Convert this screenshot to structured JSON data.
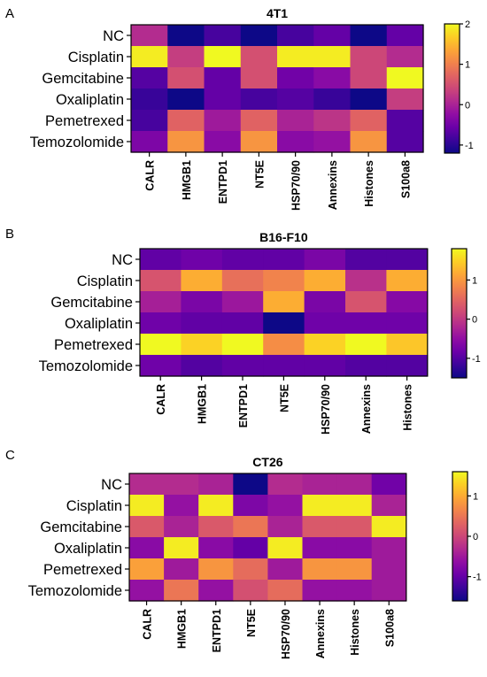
{
  "colorscale": {
    "name": "plasma",
    "stops": [
      "#0d0887",
      "#3b049a",
      "#6a00a8",
      "#900da4",
      "#b12a90",
      "#cc4778",
      "#e16462",
      "#f2844b",
      "#fca636",
      "#fcce25",
      "#f0f921"
    ]
  },
  "chart_data": [
    {
      "type": "heatmap",
      "panel_label": "A",
      "title": "4T1",
      "rows": [
        "NC",
        "Cisplatin",
        "Gemcitabine",
        "Oxaliplatin",
        "Pemetrexed",
        "Temozolomide"
      ],
      "columns": [
        "CALR",
        "HMGB1",
        "ENTPD1",
        "NT5E",
        "HSP70/90",
        "Annexins",
        "Histones",
        "S100a8"
      ],
      "values": [
        [
          0.1,
          -1.2,
          -0.8,
          -1.2,
          -0.8,
          -0.6,
          -1.2,
          -0.6
        ],
        [
          1.9,
          0.3,
          2.0,
          0.5,
          1.9,
          1.9,
          0.4,
          0.1
        ],
        [
          -0.7,
          0.5,
          -0.6,
          0.5,
          -0.5,
          -0.3,
          0.4,
          2.0
        ],
        [
          -0.9,
          -1.2,
          -0.6,
          -0.8,
          -0.7,
          -0.9,
          -1.2,
          0.3
        ],
        [
          -0.8,
          0.7,
          -0.1,
          0.7,
          0.0,
          0.2,
          0.7,
          -0.7
        ],
        [
          -0.4,
          1.2,
          -0.3,
          1.2,
          -0.3,
          -0.2,
          1.2,
          -0.7
        ]
      ],
      "colorbar": {
        "min": -1.2,
        "max": 2.0,
        "ticks": [
          -1,
          0,
          1,
          2
        ]
      }
    },
    {
      "type": "heatmap",
      "panel_label": "B",
      "title": "B16-F10",
      "rows": [
        "NC",
        "Cisplatin",
        "Gemcitabine",
        "Oxaliplatin",
        "Pemetrexed",
        "Temozolomide"
      ],
      "columns": [
        "CALR",
        "HMGB1",
        "ENTPD1",
        "NT5E",
        "HSP70/90",
        "Annexins",
        "Histones"
      ],
      "values": [
        [
          -0.9,
          -0.8,
          -0.9,
          -0.9,
          -0.7,
          -1.0,
          -1.0
        ],
        [
          0.3,
          1.2,
          0.6,
          0.8,
          1.2,
          -0.1,
          1.2
        ],
        [
          -0.3,
          -0.7,
          -0.4,
          1.2,
          -0.7,
          0.3,
          -0.6
        ],
        [
          -0.8,
          -0.9,
          -0.9,
          -1.5,
          -0.8,
          -0.8,
          -0.8
        ],
        [
          1.8,
          1.5,
          1.8,
          0.9,
          1.5,
          1.8,
          1.4
        ],
        [
          -0.8,
          -1.0,
          -0.9,
          -0.9,
          -0.9,
          -1.0,
          -1.0
        ]
      ],
      "colorbar": {
        "min": -1.5,
        "max": 1.8,
        "ticks": [
          -1,
          0,
          1
        ]
      }
    },
    {
      "type": "heatmap",
      "panel_label": "C",
      "title": "CT26",
      "rows": [
        "NC",
        "Cisplatin",
        "Gemcitabine",
        "Oxaliplatin",
        "Pemetrexed",
        "Temozolomide"
      ],
      "columns": [
        "CALR",
        "HMGB1",
        "ENTPD1",
        "NT5E",
        "HSP70/90",
        "Annexins",
        "Histones",
        "S100a8"
      ],
      "values": [
        [
          -0.3,
          -0.3,
          -0.4,
          -1.6,
          -0.3,
          -0.4,
          -0.4,
          -0.9
        ],
        [
          1.5,
          -0.6,
          1.5,
          -0.8,
          -0.6,
          1.5,
          1.5,
          -0.4
        ],
        [
          0.2,
          -0.4,
          0.2,
          0.5,
          -0.4,
          0.2,
          0.2,
          1.5
        ],
        [
          -0.7,
          1.5,
          -0.7,
          -1.0,
          1.5,
          -0.7,
          -0.7,
          -0.5
        ],
        [
          0.9,
          -0.5,
          0.8,
          0.4,
          -0.5,
          0.8,
          0.8,
          -0.5
        ],
        [
          -0.6,
          0.5,
          -0.6,
          0.1,
          0.4,
          -0.6,
          -0.6,
          -0.5
        ]
      ],
      "colorbar": {
        "min": -1.6,
        "max": 1.6,
        "ticks": [
          -1,
          0,
          1
        ]
      }
    }
  ]
}
